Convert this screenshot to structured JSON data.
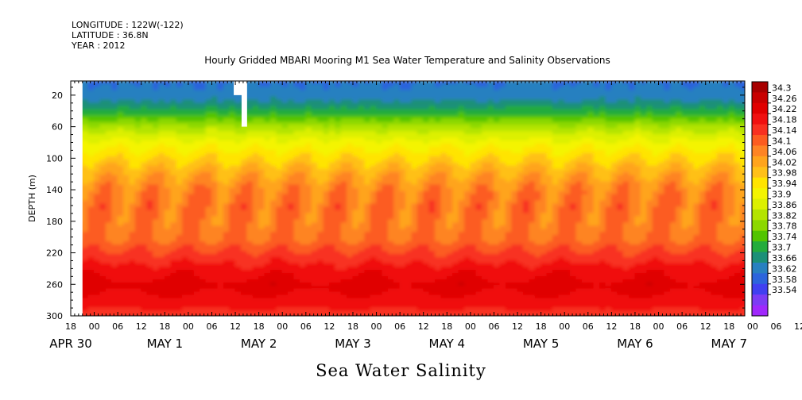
{
  "header": {
    "longitude": "LONGITUDE : 122W(-122)",
    "latitude": "LATITUDE : 36.8N",
    "year": "YEAR : 2012"
  },
  "chart_data": {
    "type": "heatmap",
    "title": "Hourly Gridded MBARI Mooring M1 Sea Water Temperature and Salinity Observations",
    "xlabel": "Sea Water Salinity",
    "ylabel": "DEPTH (m)",
    "y_ticks": [
      20,
      60,
      100,
      140,
      180,
      220,
      260,
      300
    ],
    "ylim": [
      300,
      2
    ],
    "x_hour_ticks": [
      "18",
      "00",
      "06",
      "12",
      "18",
      "00",
      "06",
      "12",
      "18",
      "00",
      "06",
      "12",
      "18",
      "00",
      "06",
      "12",
      "18",
      "00",
      "06",
      "12",
      "18",
      "00",
      "06",
      "12",
      "18",
      "00",
      "06",
      "12",
      "18",
      "00",
      "06",
      "12"
    ],
    "x_date_labels": [
      "APR 30",
      "MAY  1",
      "MAY  2",
      "MAY  3",
      "MAY  4",
      "MAY  5",
      "MAY  6",
      "MAY  7"
    ],
    "x_range": [
      "2012-04-30 12:00",
      "2012-05-07 16:00"
    ],
    "data_start": "2012-04-30 15:00",
    "colorbar": {
      "levels": [
        "34.3",
        "34.26",
        "34.22",
        "34.18",
        "34.14",
        "34.1",
        "34.06",
        "34.02",
        "33.98",
        "33.94",
        "33.9",
        "33.86",
        "33.82",
        "33.78",
        "33.74",
        "33.7",
        "33.66",
        "33.62",
        "33.58",
        "33.54"
      ],
      "colors": [
        "#a80000",
        "#c80000",
        "#e00000",
        "#f01010",
        "#f83020",
        "#fc5c20",
        "#fe8424",
        "#ffa41c",
        "#ffc018",
        "#ffe400",
        "#f4f400",
        "#dcf000",
        "#b4e400",
        "#8cd800",
        "#52c400",
        "#24ac3c",
        "#1c9078",
        "#2880c0",
        "#2c64dc",
        "#4040f0",
        "#7c3cf4",
        "#a028fc"
      ]
    },
    "depth_profile": [
      {
        "depth": 2,
        "salinity": 33.66
      },
      {
        "depth": 20,
        "salinity": 33.68
      },
      {
        "depth": 40,
        "salinity": 33.76
      },
      {
        "depth": 60,
        "salinity": 33.88
      },
      {
        "depth": 80,
        "salinity": 33.96
      },
      {
        "depth": 100,
        "salinity": 34.02
      },
      {
        "depth": 120,
        "salinity": 34.08
      },
      {
        "depth": 140,
        "salinity": 34.12
      },
      {
        "depth": 160,
        "salinity": 34.14
      },
      {
        "depth": 180,
        "salinity": 34.13
      },
      {
        "depth": 200,
        "salinity": 34.14
      },
      {
        "depth": 220,
        "salinity": 34.19
      },
      {
        "depth": 240,
        "salinity": 34.24
      },
      {
        "depth": 260,
        "salinity": 34.28
      },
      {
        "depth": 280,
        "salinity": 34.24
      },
      {
        "depth": 300,
        "salinity": 34.2
      }
    ],
    "missing_regions": [
      {
        "time_start": "2012-04-30 12:00",
        "time_end": "2012-04-30 15:00",
        "depth_top": 2,
        "depth_bottom": 300
      },
      {
        "time_start": "2012-05-02 06:00",
        "time_end": "2012-05-02 08:00",
        "depth_top": 2,
        "depth_bottom": 20
      },
      {
        "time_start": "2012-05-02 08:00",
        "time_end": "2012-05-02 09:00",
        "depth_top": 2,
        "depth_bottom": 60
      }
    ]
  }
}
